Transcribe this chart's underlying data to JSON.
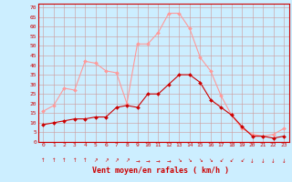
{
  "x": [
    0,
    1,
    2,
    3,
    4,
    5,
    6,
    7,
    8,
    9,
    10,
    11,
    12,
    13,
    14,
    15,
    16,
    17,
    18,
    19,
    20,
    21,
    22,
    23
  ],
  "wind_avg": [
    9,
    10,
    11,
    12,
    12,
    13,
    13,
    18,
    19,
    18,
    25,
    25,
    30,
    35,
    35,
    31,
    22,
    18,
    14,
    8,
    3,
    3,
    2,
    3
  ],
  "wind_gust": [
    16,
    19,
    28,
    27,
    42,
    41,
    37,
    36,
    20,
    51,
    51,
    57,
    67,
    67,
    59,
    44,
    37,
    24,
    14,
    7,
    4,
    3,
    4,
    7
  ],
  "bg_color": "#cceeff",
  "grid_color": "#cc9999",
  "avg_color": "#cc0000",
  "gust_color": "#ff9999",
  "xlabel": "Vent moyen/en rafales ( km/h )",
  "ylabel_values": [
    0,
    5,
    10,
    15,
    20,
    25,
    30,
    35,
    40,
    45,
    50,
    55,
    60,
    65,
    70
  ],
  "ylim": [
    0,
    72
  ],
  "xlim": [
    -0.5,
    23.5
  ],
  "arrows": [
    "↑",
    "↑",
    "↑",
    "↑",
    "↑",
    "↗",
    "↗",
    "↗",
    "↗",
    "→",
    "→",
    "→",
    "→",
    "↘",
    "↘",
    "↘",
    "↘",
    "↙",
    "↙",
    "↙",
    "↓",
    "↓",
    "↓",
    "↓"
  ]
}
